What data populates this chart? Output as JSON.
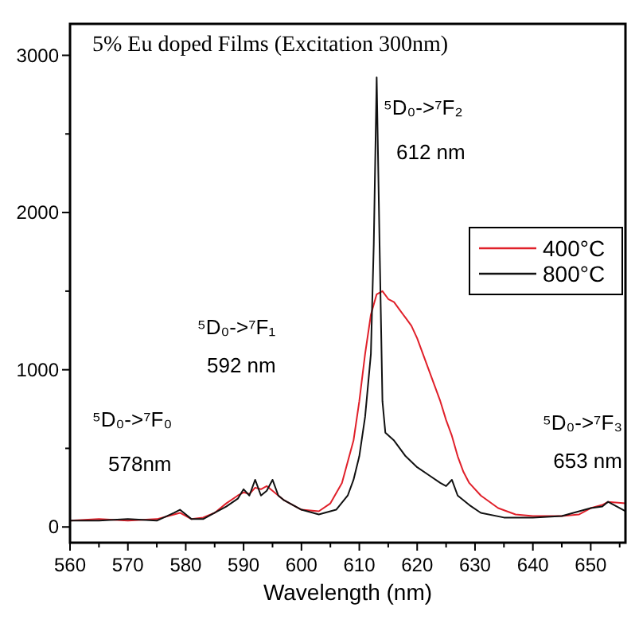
{
  "chart_data": {
    "type": "line",
    "title": "5% Eu doped Films  (Excitation 300nm)",
    "xlabel": "Wavelength (nm)",
    "xlim": [
      560,
      656
    ],
    "xticks": [
      560,
      {
        "value": 565,
        "label": null
      },
      570,
      {
        "value": 575,
        "label": null
      },
      580,
      {
        "value": 585,
        "label": null
      },
      590,
      {
        "value": 595,
        "label": null
      },
      600,
      {
        "value": 605,
        "label": null
      },
      610,
      {
        "value": 615,
        "label": null
      },
      620,
      {
        "value": 625,
        "label": null
      },
      630,
      {
        "value": 635,
        "label": null
      },
      640,
      {
        "value": 645,
        "label": null
      },
      650,
      {
        "value": 655,
        "label": null
      }
    ],
    "ylim": [
      -100,
      3200
    ],
    "yticks": [
      0,
      {
        "value": 500,
        "label": null
      },
      1000,
      {
        "value": 1500,
        "label": null
      },
      2000,
      {
        "value": 2500,
        "label": null
      },
      3000
    ],
    "grid": false,
    "legend": "right",
    "line_style": "solid",
    "marker": "none",
    "series": [
      {
        "name": "400°C",
        "color": "#e0202a",
        "x": [
          560,
          565,
          570,
          575,
          578,
          579,
          581,
          583,
          585,
          587,
          589,
          590,
          591,
          592,
          593,
          594,
          595,
          596,
          597,
          599,
          600,
          603,
          605,
          607,
          609,
          610,
          611,
          612,
          613,
          614,
          615,
          616,
          617,
          618,
          619,
          620,
          621,
          622,
          623,
          624,
          625,
          626,
          627,
          628,
          629,
          631,
          634,
          637,
          640,
          643,
          645,
          648,
          650,
          652,
          653,
          656
        ],
        "values": [
          40,
          50,
          40,
          50,
          80,
          90,
          50,
          60,
          90,
          150,
          200,
          220,
          210,
          250,
          240,
          260,
          230,
          200,
          170,
          130,
          110,
          100,
          150,
          280,
          550,
          800,
          1100,
          1350,
          1480,
          1500,
          1450,
          1430,
          1380,
          1330,
          1280,
          1200,
          1100,
          1000,
          900,
          800,
          680,
          580,
          450,
          350,
          280,
          200,
          120,
          80,
          70,
          70,
          70,
          80,
          120,
          140,
          160,
          150
        ]
      },
      {
        "name": "800°C",
        "color": "#111111",
        "x": [
          560,
          565,
          570,
          575,
          578,
          579,
          581,
          583,
          585,
          587,
          589,
          590,
          591,
          592,
          593,
          594,
          595,
          596,
          597,
          599,
          600,
          603,
          606,
          608,
          609,
          610,
          611,
          612,
          612.5,
          613,
          613.5,
          614,
          614.5,
          616,
          618,
          620,
          622,
          624,
          625,
          626,
          627,
          629,
          631,
          635,
          640,
          645,
          648,
          650,
          652,
          653,
          656
        ],
        "values": [
          40,
          40,
          50,
          40,
          90,
          110,
          50,
          50,
          90,
          130,
          180,
          240,
          200,
          300,
          200,
          230,
          300,
          200,
          170,
          130,
          110,
          80,
          110,
          200,
          300,
          450,
          700,
          1100,
          1800,
          2860,
          1800,
          800,
          600,
          550,
          450,
          380,
          330,
          280,
          260,
          300,
          200,
          140,
          90,
          60,
          60,
          70,
          100,
          120,
          130,
          160,
          100
        ]
      }
    ],
    "annotations": [
      "⁵D₀->⁷F₀",
      "578nm",
      "⁵D₀->⁷F₁",
      "592 nm",
      "⁵D₀->⁷F₂",
      "612 nm",
      "⁵D₀->⁷F₃",
      "653 nm"
    ]
  }
}
